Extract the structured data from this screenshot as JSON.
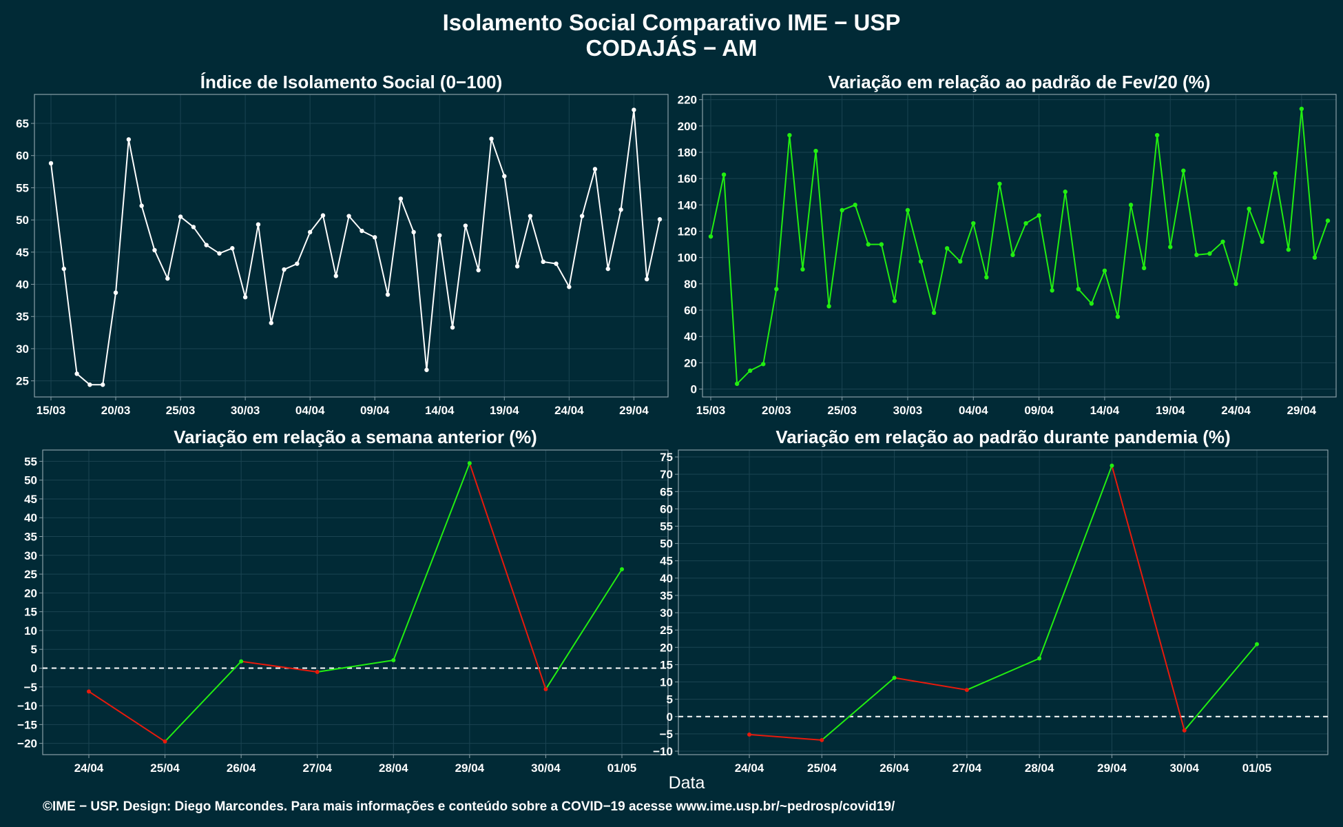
{
  "title_line1": "Isolamento Social Comparativo IME − USP",
  "title_line2": "CODAJÁS − AM",
  "xlabel": "Data",
  "footer": "©IME − USP. Design: Diego Marcondes. Para mais informações e conteúdo sobre a COVID−19 acesse www.ime.usp.br/~pedrosp/covid19/",
  "colors": {
    "background": "#012a36",
    "white": "#ffffff",
    "green": "#22ee11",
    "red": "#e81a0c",
    "grid": "#1b4452",
    "frame": "#8aa0a8"
  },
  "chart_data": [
    {
      "id": "p1",
      "type": "line",
      "title": "Índice de Isolamento Social (0−100)",
      "x_dates": [
        "15/03",
        "16/03",
        "17/03",
        "18/03",
        "19/03",
        "20/03",
        "21/03",
        "22/03",
        "23/03",
        "24/03",
        "25/03",
        "26/03",
        "27/03",
        "28/03",
        "29/03",
        "30/03",
        "31/03",
        "01/04",
        "02/04",
        "03/04",
        "04/04",
        "05/04",
        "06/04",
        "07/04",
        "08/04",
        "09/04",
        "10/04",
        "11/04",
        "12/04",
        "13/04",
        "14/04",
        "15/04",
        "16/04",
        "17/04",
        "18/04",
        "19/04",
        "20/04",
        "21/04",
        "22/04",
        "23/04",
        "24/04",
        "25/04",
        "26/04",
        "27/04",
        "28/04",
        "29/04",
        "30/04",
        "01/05"
      ],
      "values": [
        58.8,
        42.4,
        26.1,
        24.4,
        24.4,
        38.7,
        62.5,
        52.2,
        45.3,
        40.9,
        50.5,
        48.9,
        46.1,
        44.8,
        45.6,
        38.0,
        49.3,
        34.0,
        42.3,
        43.2,
        48.1,
        50.7,
        41.3,
        50.6,
        48.3,
        47.3,
        38.4,
        53.3,
        48.1,
        26.7,
        47.6,
        33.3,
        49.1,
        42.2,
        62.6,
        56.8,
        42.8,
        50.6,
        43.5,
        43.2,
        39.6,
        50.6,
        57.9,
        42.4,
        51.6,
        67.1,
        40.8,
        50.1
      ],
      "x_ticks": [
        "15/03",
        "20/03",
        "25/03",
        "30/03",
        "04/04",
        "09/04",
        "14/04",
        "19/04",
        "24/04",
        "29/04"
      ],
      "x_tick_index": [
        0,
        5,
        10,
        15,
        20,
        25,
        30,
        35,
        40,
        45
      ],
      "y_ticks": [
        25,
        30,
        35,
        40,
        45,
        50,
        55,
        60,
        65
      ],
      "ylim": [
        22.5,
        69.5
      ],
      "color_mode": "white"
    },
    {
      "id": "p2",
      "type": "line",
      "title": "Variação em relação ao padrão de Fev/20 (%)",
      "x_dates": [
        "15/03",
        "16/03",
        "17/03",
        "18/03",
        "19/03",
        "20/03",
        "21/03",
        "22/03",
        "23/03",
        "24/03",
        "25/03",
        "26/03",
        "27/03",
        "28/03",
        "29/03",
        "30/03",
        "31/03",
        "01/04",
        "02/04",
        "03/04",
        "04/04",
        "05/04",
        "06/04",
        "07/04",
        "08/04",
        "09/04",
        "10/04",
        "11/04",
        "12/04",
        "13/04",
        "14/04",
        "15/04",
        "16/04",
        "17/04",
        "18/04",
        "19/04",
        "20/04",
        "21/04",
        "22/04",
        "23/04",
        "24/04",
        "25/04",
        "26/04",
        "27/04",
        "28/04",
        "29/04",
        "30/04",
        "01/05"
      ],
      "values": [
        116,
        163,
        4,
        14,
        19,
        76,
        193,
        91,
        181,
        63,
        136,
        140,
        110,
        110,
        67,
        136,
        97,
        58,
        107,
        97,
        126,
        85,
        156,
        102,
        126,
        132,
        75,
        150,
        76,
        65,
        90,
        55,
        140,
        92,
        193,
        108,
        166,
        102,
        103,
        112,
        80,
        137,
        112,
        164,
        106,
        213,
        100,
        128
      ],
      "x_ticks": [
        "15/03",
        "20/03",
        "25/03",
        "30/03",
        "04/04",
        "09/04",
        "14/04",
        "19/04",
        "24/04",
        "29/04"
      ],
      "x_tick_index": [
        0,
        5,
        10,
        15,
        20,
        25,
        30,
        35,
        40,
        45
      ],
      "y_ticks": [
        0,
        20,
        40,
        60,
        80,
        100,
        120,
        140,
        160,
        180,
        200,
        220
      ],
      "ylim": [
        -6,
        224
      ],
      "color_mode": "green"
    },
    {
      "id": "p3",
      "type": "line",
      "title": "Variação em relação a semana anterior (%)",
      "categories": [
        "24/04",
        "25/04",
        "26/04",
        "27/04",
        "28/04",
        "29/04",
        "30/04",
        "01/05"
      ],
      "values": [
        -6.2,
        -19.5,
        1.8,
        -1.0,
        2.1,
        54.5,
        -5.6,
        26.3
      ],
      "y_ticks": [
        -20,
        -15,
        -10,
        -5,
        0,
        5,
        10,
        15,
        20,
        25,
        30,
        35,
        40,
        45,
        50,
        55
      ],
      "ylim": [
        -23,
        58
      ],
      "zero_line": true,
      "color_mode": "updown"
    },
    {
      "id": "p4",
      "type": "line",
      "title": "Variação em relação ao padrão durante pandemia (%)",
      "categories": [
        "24/04",
        "25/04",
        "26/04",
        "27/04",
        "28/04",
        "29/04",
        "30/04",
        "01/05"
      ],
      "values": [
        -5.2,
        -6.8,
        11.2,
        7.7,
        16.8,
        72.5,
        -4.0,
        20.9
      ],
      "y_ticks": [
        -10,
        -5,
        0,
        5,
        10,
        15,
        20,
        25,
        30,
        35,
        40,
        45,
        50,
        55,
        60,
        65,
        70,
        75
      ],
      "ylim": [
        -11,
        77
      ],
      "zero_line": true,
      "color_mode": "updown"
    }
  ]
}
